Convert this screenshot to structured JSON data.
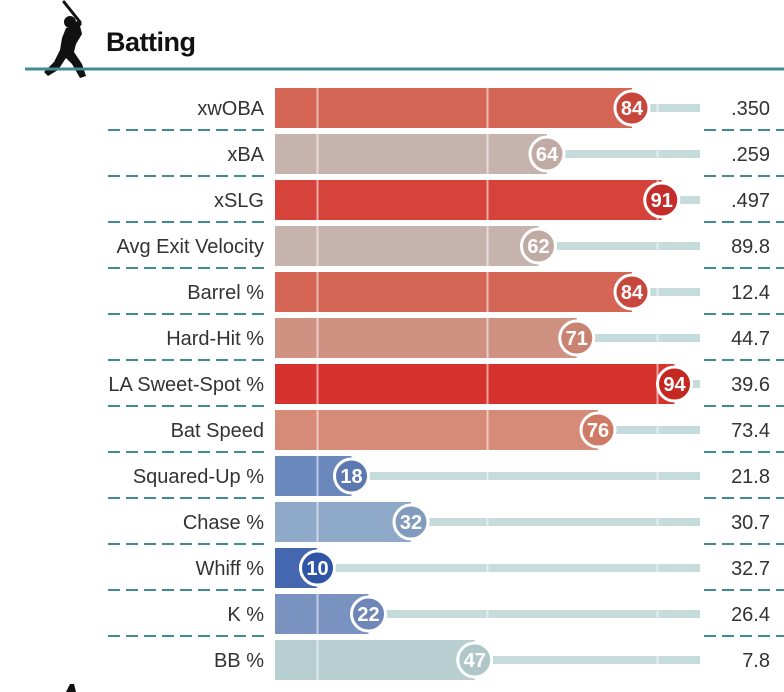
{
  "header": {
    "title": "Batting",
    "icon": "batter-icon"
  },
  "colors": {
    "rule": "#3f8c91",
    "divider": "#3f8c91",
    "track": "#c5dbdc",
    "label": "#333333"
  },
  "chart_data": {
    "type": "bar",
    "title": "Batting",
    "xlim": [
      0,
      100
    ],
    "reference_lines": [
      10,
      50,
      90
    ],
    "categories": [
      "xwOBA",
      "xBA",
      "xSLG",
      "Avg Exit Velocity",
      "Barrel %",
      "Hard-Hit %",
      "LA Sweet-Spot %",
      "Bat Speed",
      "Squared-Up %",
      "Chase %",
      "Whiff %",
      "K %",
      "BB %"
    ],
    "series": [
      {
        "name": "Percentile",
        "values": [
          84,
          64,
          91,
          62,
          84,
          71,
          94,
          76,
          18,
          32,
          10,
          22,
          47
        ]
      }
    ],
    "stat_values": [
      ".350",
      ".259",
      ".497",
      "89.8",
      "12.4",
      "44.7",
      "39.6",
      "73.4",
      "21.8",
      "30.7",
      "32.7",
      "26.4",
      "7.8"
    ],
    "bar_colors": [
      "#d56555",
      "#c7b3ad",
      "#d6433b",
      "#c7b3ad",
      "#d56555",
      "#cf9182",
      "#d6332e",
      "#d68a78",
      "#6b88bc",
      "#8fa9c8",
      "#4467b0",
      "#7a92c0",
      "#b8cfd2"
    ],
    "circle_colors": [
      "#c8473c",
      "#c2aaa4",
      "#c42d2b",
      "#c2aaa4",
      "#c8473c",
      "#c98371",
      "#c42820",
      "#cf7a65",
      "#5c78b0",
      "#819bbd",
      "#2e55a6",
      "#6e86b8",
      "#b0c7ca"
    ]
  }
}
